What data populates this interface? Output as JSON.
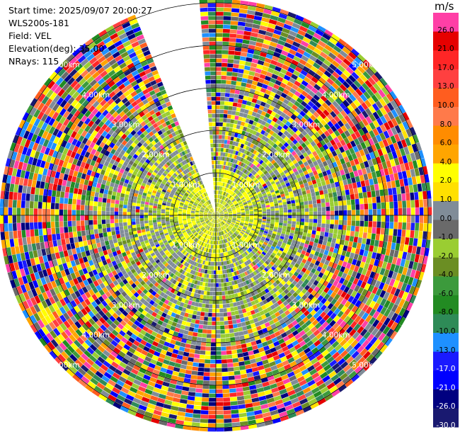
{
  "info": {
    "start_time_label": "Start time:",
    "start_time": "2025/09/07 20:00:27",
    "instrument": "WLS200s-181",
    "field_label": "Field:",
    "field": "VEL",
    "elevation_label": "Elevation(deg):",
    "elevation": "35.00",
    "nrays_label": "NRays:",
    "nrays": "115"
  },
  "colorbar": {
    "unit": "m/s",
    "levels": [
      "26.0",
      "21.0",
      "17.0",
      "13.0",
      "10.0",
      "8.0",
      "6.0",
      "4.0",
      "2.0",
      "1.0",
      "0.0",
      "-1.0",
      "-2.0",
      "-4.0",
      "-6.0",
      "-8.0",
      "-10.0",
      "-13.0",
      "-17.0",
      "-21.0",
      "-26.0",
      "-30.0"
    ],
    "colors": [
      "#ff3fa6",
      "#e60000",
      "#ff2626",
      "#ff4040",
      "#ff5d1f",
      "#ff7a4a",
      "#ff8c00",
      "#ffa500",
      "#ffff00",
      "#ffe000",
      "#808c98",
      "#6a6a6a",
      "#9acd32",
      "#6b8e23",
      "#3c9a3c",
      "#228b22",
      "#2e8b57",
      "#1e90ff",
      "#1a1aff",
      "#0000ff",
      "#000080",
      "#191970"
    ]
  },
  "rings": {
    "labels": [
      "1.00km",
      "2.00km",
      "3.00km",
      "4.00km",
      "5.00km"
    ]
  },
  "chart_data": {
    "type": "ppi",
    "field": "VEL",
    "units": "m/s",
    "elevation_deg": 35.0,
    "nrays": 115,
    "ring_ranges_km": [
      1,
      2,
      3,
      4,
      5
    ],
    "color_range": [
      -30,
      26
    ]
  }
}
